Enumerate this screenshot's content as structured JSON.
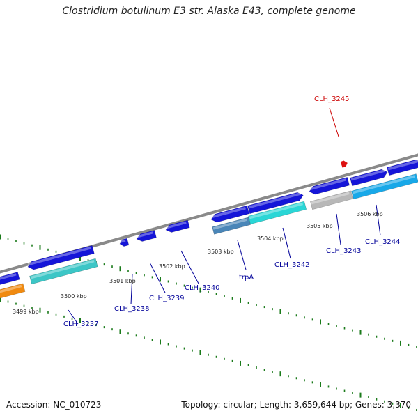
{
  "title": "Clostridium botulinum E3 str. Alaska E43, complete genome",
  "footer": {
    "accession": "Accession: NC_010723",
    "summary": "Topology: circular; Length: 3,659,644 bp; Genes: 3,370"
  },
  "colors": {
    "backbone": "#8a8a8a",
    "tick": "#1a7a1a",
    "gene_blue": "#1515d8",
    "gene_cyan": "#2ad6d6",
    "gene_orange": "#f08a10",
    "gene_gray": "#b8b8b8",
    "gene_steel": "#4a86b8",
    "gene_sky": "#18a8e8",
    "gene_teal": "#3cc6c6",
    "label_blue": "#000099",
    "label_red": "#cc0000"
  },
  "scale_labels": [
    "3499 kbp",
    "3500 kbp",
    "3501 kbp",
    "3502 kbp",
    "3503 kbp",
    "3504 kbp",
    "3505 kbp",
    "3506 kbp"
  ],
  "gene_labels": [
    {
      "id": "CLH_3237",
      "text": "CLH_3237",
      "color": "blue"
    },
    {
      "id": "CLH_3238",
      "text": "CLH_3238",
      "color": "blue"
    },
    {
      "id": "CLH_3239",
      "text": "CLH_3239",
      "color": "blue"
    },
    {
      "id": "CLH_3240",
      "text": "CLH_3240",
      "color": "blue"
    },
    {
      "id": "trpA",
      "text": "trpA",
      "color": "blue"
    },
    {
      "id": "CLH_3242",
      "text": "CLH_3242",
      "color": "blue"
    },
    {
      "id": "CLH_3243",
      "text": "CLH_3243",
      "color": "blue"
    },
    {
      "id": "CLH_3244",
      "text": "CLH_3244",
      "color": "blue"
    },
    {
      "id": "CLH_3245",
      "text": "CLH_3245",
      "color": "red"
    }
  ]
}
